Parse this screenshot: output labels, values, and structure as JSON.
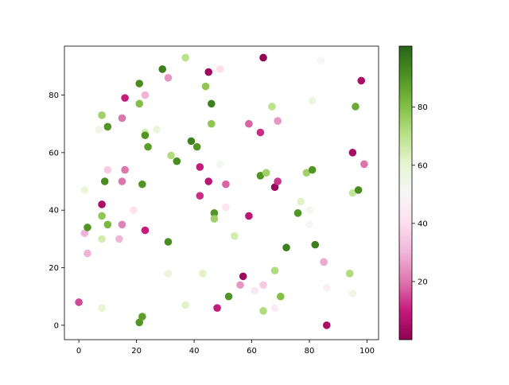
{
  "chart_data": {
    "type": "scatter",
    "title": "",
    "xlabel": "",
    "ylabel": "",
    "xlim": [
      -5,
      104
    ],
    "ylim": [
      -5,
      97
    ],
    "grid": false,
    "x_ticks": [
      0,
      20,
      40,
      60,
      80,
      100
    ],
    "y_ticks": [
      0,
      20,
      40,
      60,
      80
    ],
    "colormap": "PiYG",
    "colormap_stops": [
      "#8e0152",
      "#c51b7d",
      "#de77ae",
      "#f1b6da",
      "#fde0ef",
      "#f7f7f7",
      "#e6f5d0",
      "#b8e186",
      "#7fbc41",
      "#4d9221",
      "#276419"
    ],
    "colorbar": {
      "range": [
        0,
        101
      ],
      "ticks": [
        20,
        40,
        60,
        80
      ],
      "placement": "right"
    },
    "points": [
      {
        "x": 0,
        "y": 8,
        "c": 15
      },
      {
        "x": 2,
        "y": 32,
        "c": 30
      },
      {
        "x": 2,
        "y": 47,
        "c": 58
      },
      {
        "x": 3,
        "y": 34,
        "c": 90
      },
      {
        "x": 3,
        "y": 25,
        "c": 30
      },
      {
        "x": 8,
        "y": 73,
        "c": 75
      },
      {
        "x": 7,
        "y": 68,
        "c": 55
      },
      {
        "x": 10,
        "y": 69,
        "c": 90
      },
      {
        "x": 8,
        "y": 42,
        "c": 5
      },
      {
        "x": 9,
        "y": 50,
        "c": 92
      },
      {
        "x": 8,
        "y": 38,
        "c": 78
      },
      {
        "x": 8,
        "y": 30,
        "c": 65
      },
      {
        "x": 10,
        "y": 35,
        "c": 82
      },
      {
        "x": 10,
        "y": 54,
        "c": 35
      },
      {
        "x": 8,
        "y": 6,
        "c": 60
      },
      {
        "x": 16,
        "y": 79,
        "c": 10
      },
      {
        "x": 15,
        "y": 72,
        "c": 20
      },
      {
        "x": 16,
        "y": 54,
        "c": 20
      },
      {
        "x": 15,
        "y": 50,
        "c": 20
      },
      {
        "x": 15,
        "y": 35,
        "c": 22
      },
      {
        "x": 14,
        "y": 30,
        "c": 30
      },
      {
        "x": 19,
        "y": 40,
        "c": 42
      },
      {
        "x": 21,
        "y": 84,
        "c": 92
      },
      {
        "x": 21,
        "y": 77,
        "c": 80
      },
      {
        "x": 23,
        "y": 80,
        "c": 30
      },
      {
        "x": 23,
        "y": 67,
        "c": 65
      },
      {
        "x": 23,
        "y": 66,
        "c": 90
      },
      {
        "x": 24,
        "y": 62,
        "c": 88
      },
      {
        "x": 27,
        "y": 68,
        "c": 58
      },
      {
        "x": 22,
        "y": 49,
        "c": 90
      },
      {
        "x": 23,
        "y": 33,
        "c": 10
      },
      {
        "x": 21,
        "y": 1,
        "c": 90
      },
      {
        "x": 22,
        "y": 3,
        "c": 88
      },
      {
        "x": 29,
        "y": 89,
        "c": 95
      },
      {
        "x": 31,
        "y": 86,
        "c": 25
      },
      {
        "x": 32,
        "y": 59,
        "c": 72
      },
      {
        "x": 34,
        "y": 57,
        "c": 92
      },
      {
        "x": 31,
        "y": 29,
        "c": 92
      },
      {
        "x": 31,
        "y": 18,
        "c": 58
      },
      {
        "x": 37,
        "y": 93,
        "c": 70
      },
      {
        "x": 37,
        "y": 7,
        "c": 62
      },
      {
        "x": 39,
        "y": 64,
        "c": 95
      },
      {
        "x": 41,
        "y": 62,
        "c": 90
      },
      {
        "x": 42,
        "y": 55,
        "c": 10
      },
      {
        "x": 42,
        "y": 45,
        "c": 12
      },
      {
        "x": 43,
        "y": 18,
        "c": 62
      },
      {
        "x": 44,
        "y": 83,
        "c": 78
      },
      {
        "x": 45,
        "y": 88,
        "c": 3
      },
      {
        "x": 49,
        "y": 89,
        "c": 40
      },
      {
        "x": 46,
        "y": 77,
        "c": 95
      },
      {
        "x": 46,
        "y": 70,
        "c": 78
      },
      {
        "x": 45,
        "y": 50,
        "c": 8
      },
      {
        "x": 47,
        "y": 39,
        "c": 90
      },
      {
        "x": 47,
        "y": 37,
        "c": 75
      },
      {
        "x": 48,
        "y": 6,
        "c": 10
      },
      {
        "x": 49,
        "y": 56,
        "c": 52
      },
      {
        "x": 51,
        "y": 49,
        "c": 18
      },
      {
        "x": 51,
        "y": 41,
        "c": 42
      },
      {
        "x": 52,
        "y": 10,
        "c": 90
      },
      {
        "x": 54,
        "y": 31,
        "c": 65
      },
      {
        "x": 56,
        "y": 14,
        "c": 25
      },
      {
        "x": 57,
        "y": 17,
        "c": 3
      },
      {
        "x": 64,
        "y": 93,
        "c": 1
      },
      {
        "x": 59,
        "y": 70,
        "c": 18
      },
      {
        "x": 63,
        "y": 67,
        "c": 12
      },
      {
        "x": 63,
        "y": 52,
        "c": 90
      },
      {
        "x": 65,
        "y": 53,
        "c": 75
      },
      {
        "x": 59,
        "y": 38,
        "c": 8
      },
      {
        "x": 61,
        "y": 12,
        "c": 44
      },
      {
        "x": 64,
        "y": 14,
        "c": 35
      },
      {
        "x": 64,
        "y": 5,
        "c": 72
      },
      {
        "x": 67,
        "y": 76,
        "c": 70
      },
      {
        "x": 69,
        "y": 71,
        "c": 25
      },
      {
        "x": 68,
        "y": 48,
        "c": 2
      },
      {
        "x": 69,
        "y": 50,
        "c": 13
      },
      {
        "x": 68,
        "y": 19,
        "c": 72
      },
      {
        "x": 68,
        "y": 6,
        "c": 45
      },
      {
        "x": 70,
        "y": 10,
        "c": 80
      },
      {
        "x": 72,
        "y": 27,
        "c": 95
      },
      {
        "x": 84,
        "y": 92,
        "c": 50
      },
      {
        "x": 81,
        "y": 78,
        "c": 57
      },
      {
        "x": 77,
        "y": 43,
        "c": 62
      },
      {
        "x": 76,
        "y": 39,
        "c": 90
      },
      {
        "x": 80,
        "y": 40,
        "c": 52
      },
      {
        "x": 80,
        "y": 35,
        "c": 50
      },
      {
        "x": 79,
        "y": 53,
        "c": 75
      },
      {
        "x": 81,
        "y": 54,
        "c": 90
      },
      {
        "x": 82,
        "y": 28,
        "c": 95
      },
      {
        "x": 85,
        "y": 22,
        "c": 28
      },
      {
        "x": 86,
        "y": 13,
        "c": 47
      },
      {
        "x": 86,
        "y": 0,
        "c": 5
      },
      {
        "x": 98,
        "y": 85,
        "c": 5
      },
      {
        "x": 96,
        "y": 76,
        "c": 85
      },
      {
        "x": 95,
        "y": 60,
        "c": 5
      },
      {
        "x": 99,
        "y": 56,
        "c": 20
      },
      {
        "x": 95,
        "y": 46,
        "c": 68
      },
      {
        "x": 97,
        "y": 47,
        "c": 92
      },
      {
        "x": 94,
        "y": 18,
        "c": 72
      },
      {
        "x": 95,
        "y": 11,
        "c": 55
      }
    ]
  }
}
